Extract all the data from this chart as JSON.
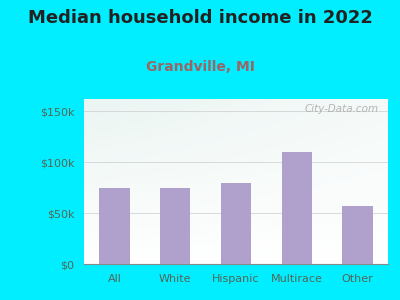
{
  "title": "Median household income in 2022",
  "subtitle": "Grandville, MI",
  "categories": [
    "All",
    "White",
    "Hispanic",
    "Multirace",
    "Other"
  ],
  "values": [
    75000,
    75000,
    80000,
    110000,
    57000
  ],
  "bar_color": "#b0a0cc",
  "title_fontsize": 13,
  "subtitle_fontsize": 10,
  "subtitle_color": "#996666",
  "title_color": "#222222",
  "background_outer": "#00eeff",
  "yticks": [
    0,
    50000,
    100000,
    150000
  ],
  "ytick_labels": [
    "$0",
    "$50k",
    "$100k",
    "$150k"
  ],
  "ylim": [
    0,
    162000
  ],
  "watermark": "City-Data.com",
  "watermark_color": "#aaaaaa",
  "tick_color": "#556655"
}
